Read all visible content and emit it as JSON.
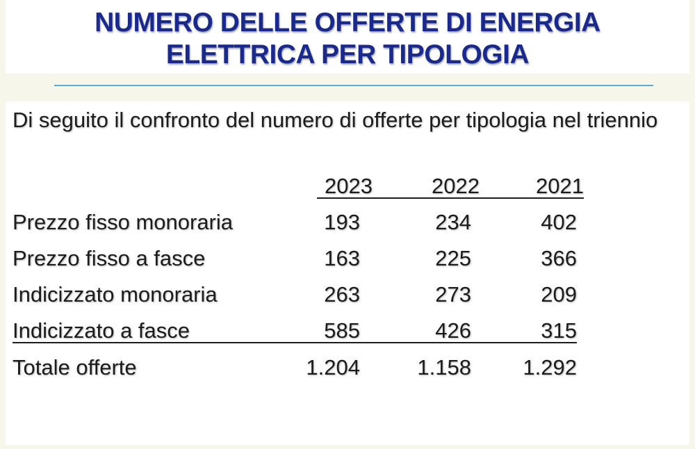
{
  "title": {
    "line1": "NUMERO DELLE OFFERTE DI ENERGIA",
    "line2": "ELETTRICA PER TIPOLOGIA"
  },
  "intro": "Di seguito il confronto del numero di offerte per tipologia nel triennio",
  "table": {
    "headers": [
      "2023",
      "2022",
      "2021"
    ],
    "rows": [
      {
        "label": "Prezzo fisso monoraria",
        "values": [
          "193",
          "234",
          "402"
        ]
      },
      {
        "label": "Prezzo fisso a fasce",
        "values": [
          "163",
          "225",
          "366"
        ]
      },
      {
        "label": "Indicizzato monoraria",
        "values": [
          "263",
          "273",
          "209"
        ]
      },
      {
        "label": "Indicizzato a fasce",
        "values": [
          "585",
          "426",
          "315"
        ]
      }
    ],
    "total": {
      "label": "Totale offerte",
      "values": [
        "1.204",
        "1.158",
        "1.292"
      ]
    }
  }
}
